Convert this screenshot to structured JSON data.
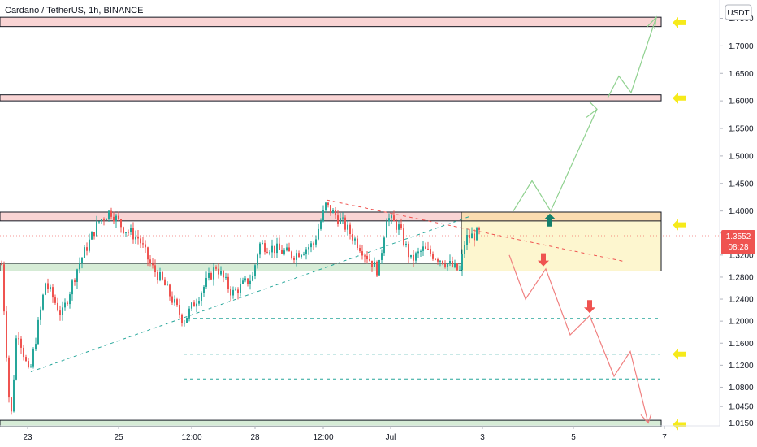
{
  "header": {
    "symbol": "Cardano / TetherUS",
    "interval": "1h",
    "exchange": "BINANCE",
    "sep1": ", ",
    "sep2": ", "
  },
  "currency_badge": "USDT",
  "price_badge": {
    "price": "1.3552",
    "countdown": "08:28",
    "color": "#ef5350"
  },
  "colors": {
    "bull": "#26a69a",
    "bear": "#ef5350",
    "resistance_fill": "#f9d4d4",
    "support_fill": "#d6ecd6",
    "range_fill": "#fdf6cf",
    "range_top_fill": "#fbdcb0",
    "arrow_yellow": "#f6ea1a",
    "up_arrow": "#13806c",
    "down_arrow": "#ef5350",
    "bull_path": "#8fd18f",
    "bear_path": "#f08080"
  },
  "chart_data": {
    "type": "candlestick",
    "pair": "Cardano / TetherUS",
    "timeframe": "1h",
    "exchange": "BINANCE",
    "y_axis": {
      "range": [
        1.005,
        1.77
      ],
      "ticks": [
        1.015,
        1.045,
        1.08,
        1.12,
        1.16,
        1.2,
        1.24,
        1.28,
        1.32,
        1.36,
        1.4,
        1.45,
        1.5,
        1.55,
        1.6,
        1.65,
        1.7,
        1.75
      ],
      "tick_labels": [
        "1.0150",
        "1.0450",
        "1.0800",
        "1.1200",
        "1.1600",
        "1.2000",
        "1.2400",
        "1.2800",
        "1.3200",
        "1.3600",
        "1.4000",
        "1.4500",
        "1.5000",
        "1.5500",
        "1.6000",
        "1.6500",
        "1.7000",
        "1.7500"
      ]
    },
    "x_axis": {
      "labels": [
        "23",
        "25",
        "12:00",
        "28",
        "12:00",
        "Jul",
        "3",
        "5",
        "7"
      ]
    },
    "price_path": [
      [
        0,
        1.33
      ],
      [
        12,
        1.01
      ],
      [
        20,
        1.19
      ],
      [
        35,
        1.1
      ],
      [
        55,
        1.27
      ],
      [
        75,
        1.21
      ],
      [
        95,
        1.3
      ],
      [
        120,
        1.38
      ],
      [
        135,
        1.4
      ],
      [
        150,
        1.37
      ],
      [
        170,
        1.35
      ],
      [
        185,
        1.3
      ],
      [
        200,
        1.27
      ],
      [
        225,
        1.2
      ],
      [
        245,
        1.25
      ],
      [
        265,
        1.3
      ],
      [
        285,
        1.25
      ],
      [
        310,
        1.28
      ],
      [
        318,
        1.34
      ],
      [
        340,
        1.33
      ],
      [
        360,
        1.32
      ],
      [
        385,
        1.34
      ],
      [
        400,
        1.41
      ],
      [
        420,
        1.38
      ],
      [
        440,
        1.34
      ],
      [
        455,
        1.31
      ],
      [
        465,
        1.29
      ],
      [
        475,
        1.39
      ],
      [
        490,
        1.37
      ],
      [
        505,
        1.31
      ],
      [
        520,
        1.33
      ],
      [
        545,
        1.31
      ],
      [
        555,
        1.3
      ],
      [
        565,
        1.29
      ],
      [
        572,
        1.35
      ],
      [
        590,
        1.36
      ]
    ],
    "zones": [
      {
        "kind": "resistance",
        "low": 1.735,
        "high": 1.752
      },
      {
        "kind": "resistance",
        "low": 1.6,
        "high": 1.611
      },
      {
        "kind": "resistance",
        "low": 1.382,
        "high": 1.398
      },
      {
        "kind": "support",
        "low": 1.291,
        "high": 1.305
      },
      {
        "kind": "support",
        "low": 1.008,
        "high": 1.02
      }
    ],
    "range_box": {
      "low": 1.291,
      "high": 1.398,
      "upper_band_low": 1.382
    },
    "dashed_levels": [
      1.205,
      1.14,
      1.095
    ],
    "trendline_support": {
      "from": [
        38,
        1.108
      ],
      "to": [
        578,
        1.39
      ]
    },
    "trendline_resistance": {
      "from": [
        402,
        1.42
      ],
      "to": [
        770,
        1.308
      ]
    },
    "bull_projection": [
      [
        632,
        1.4
      ],
      [
        655,
        1.455
      ],
      [
        678,
        1.4
      ],
      [
        735,
        1.585
      ],
      [
        722,
        1.575
      ],
      [
        735,
        1.585
      ],
      [
        750,
        1.605
      ],
      [
        762,
        1.645
      ],
      [
        777,
        1.615
      ],
      [
        808,
        1.752
      ]
    ],
    "bear_projection": [
      [
        627,
        1.32
      ],
      [
        647,
        1.24
      ],
      [
        672,
        1.295
      ],
      [
        702,
        1.175
      ],
      [
        726,
        1.21
      ],
      [
        756,
        1.1
      ],
      [
        776,
        1.145
      ],
      [
        798,
        1.015
      ]
    ],
    "markers": [
      {
        "kind": "up",
        "x": 677,
        "price": 1.385
      },
      {
        "kind": "down",
        "x": 669,
        "price": 1.31
      },
      {
        "kind": "down",
        "x": 726,
        "price": 1.225
      }
    ],
    "yellow_arrows": [
      1.742,
      1.605,
      1.375,
      1.14,
      1.012
    ]
  }
}
